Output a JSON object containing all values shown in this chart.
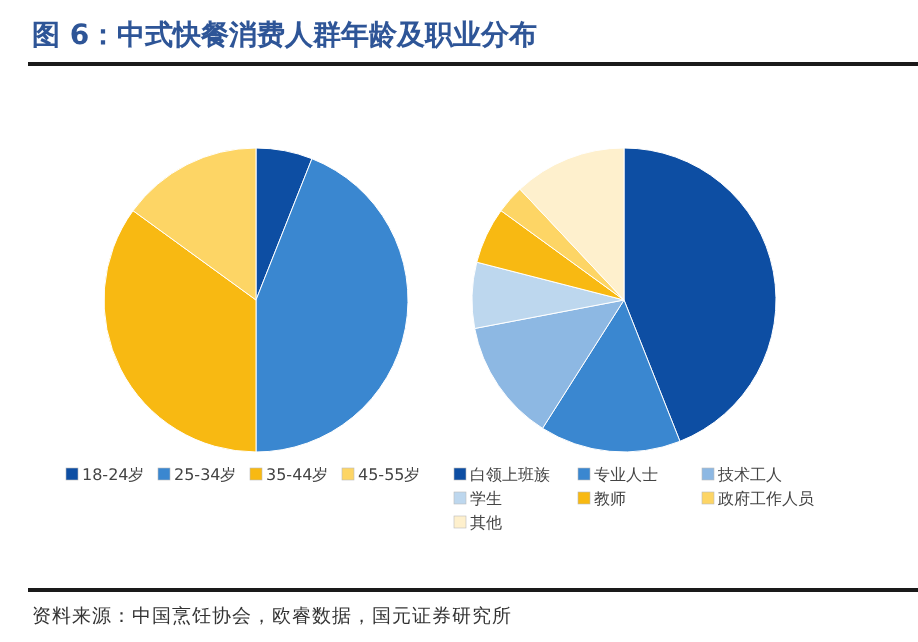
{
  "chart_data": [
    {
      "type": "pie",
      "title": "图 6：中式快餐消费人群年龄及职业分布",
      "categories": [
        "18-24岁",
        "25-34岁",
        "35-44岁",
        "45-55岁"
      ],
      "values": [
        6,
        44,
        35,
        15
      ],
      "colors": [
        "#0d4ea3",
        "#3a87d0",
        "#f8b912",
        "#fdd565"
      ],
      "legend": "bottom"
    },
    {
      "type": "pie",
      "categories": [
        "白领上班族",
        "专业人士",
        "技术工人",
        "学生",
        "教师",
        "政府工作人员",
        "其他"
      ],
      "values": [
        44,
        15,
        13,
        7,
        6,
        3,
        12
      ],
      "colors": [
        "#0d4ea3",
        "#3a87d0",
        "#8db8e3",
        "#bdd7ee",
        "#f8b912",
        "#fdd565",
        "#fef0cd"
      ],
      "legend": "bottom",
      "annotations": [
        "资料来源：中国烹饪协会，欧睿数据，国元证券研究所"
      ]
    }
  ]
}
